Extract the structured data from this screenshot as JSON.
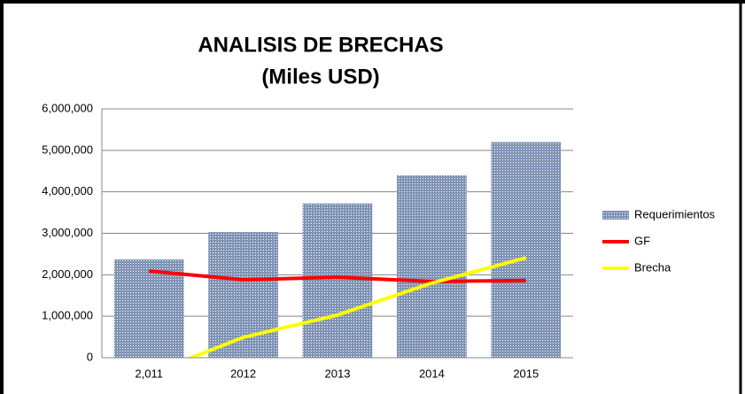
{
  "chart_data": {
    "type": "bar",
    "title": [
      "ANALISIS DE BRECHAS",
      "(Miles USD)"
    ],
    "categories": [
      "2,011",
      "2012",
      "2013",
      "2014",
      "2015"
    ],
    "series": [
      {
        "name": "Requerimientos",
        "type": "bar",
        "color": "#7f93b4",
        "values": [
          2370000,
          3030000,
          3720000,
          4400000,
          5200000
        ]
      },
      {
        "name": "GF",
        "type": "line",
        "color": "#ff0000",
        "values": [
          2090000,
          1880000,
          1940000,
          1840000,
          1860000
        ]
      },
      {
        "name": "Brecha",
        "type": "line",
        "color": "#ffff00",
        "values": [
          -400000,
          490000,
          1030000,
          1800000,
          2410000
        ]
      }
    ],
    "ylim": [
      0,
      6000000
    ],
    "yticks": [
      0,
      {
        "value": 1000000,
        "label": "1,000,000"
      },
      {
        "value": 2000000,
        "label": "2,000,000"
      },
      {
        "value": 3000000,
        "label": "3,000,000"
      },
      {
        "value": 4000000,
        "label": "4,000,000"
      },
      {
        "value": 5000000,
        "label": "5,000,000"
      },
      {
        "value": 6000000,
        "label": "6,000,000"
      }
    ],
    "grid": true,
    "legend": "right"
  }
}
